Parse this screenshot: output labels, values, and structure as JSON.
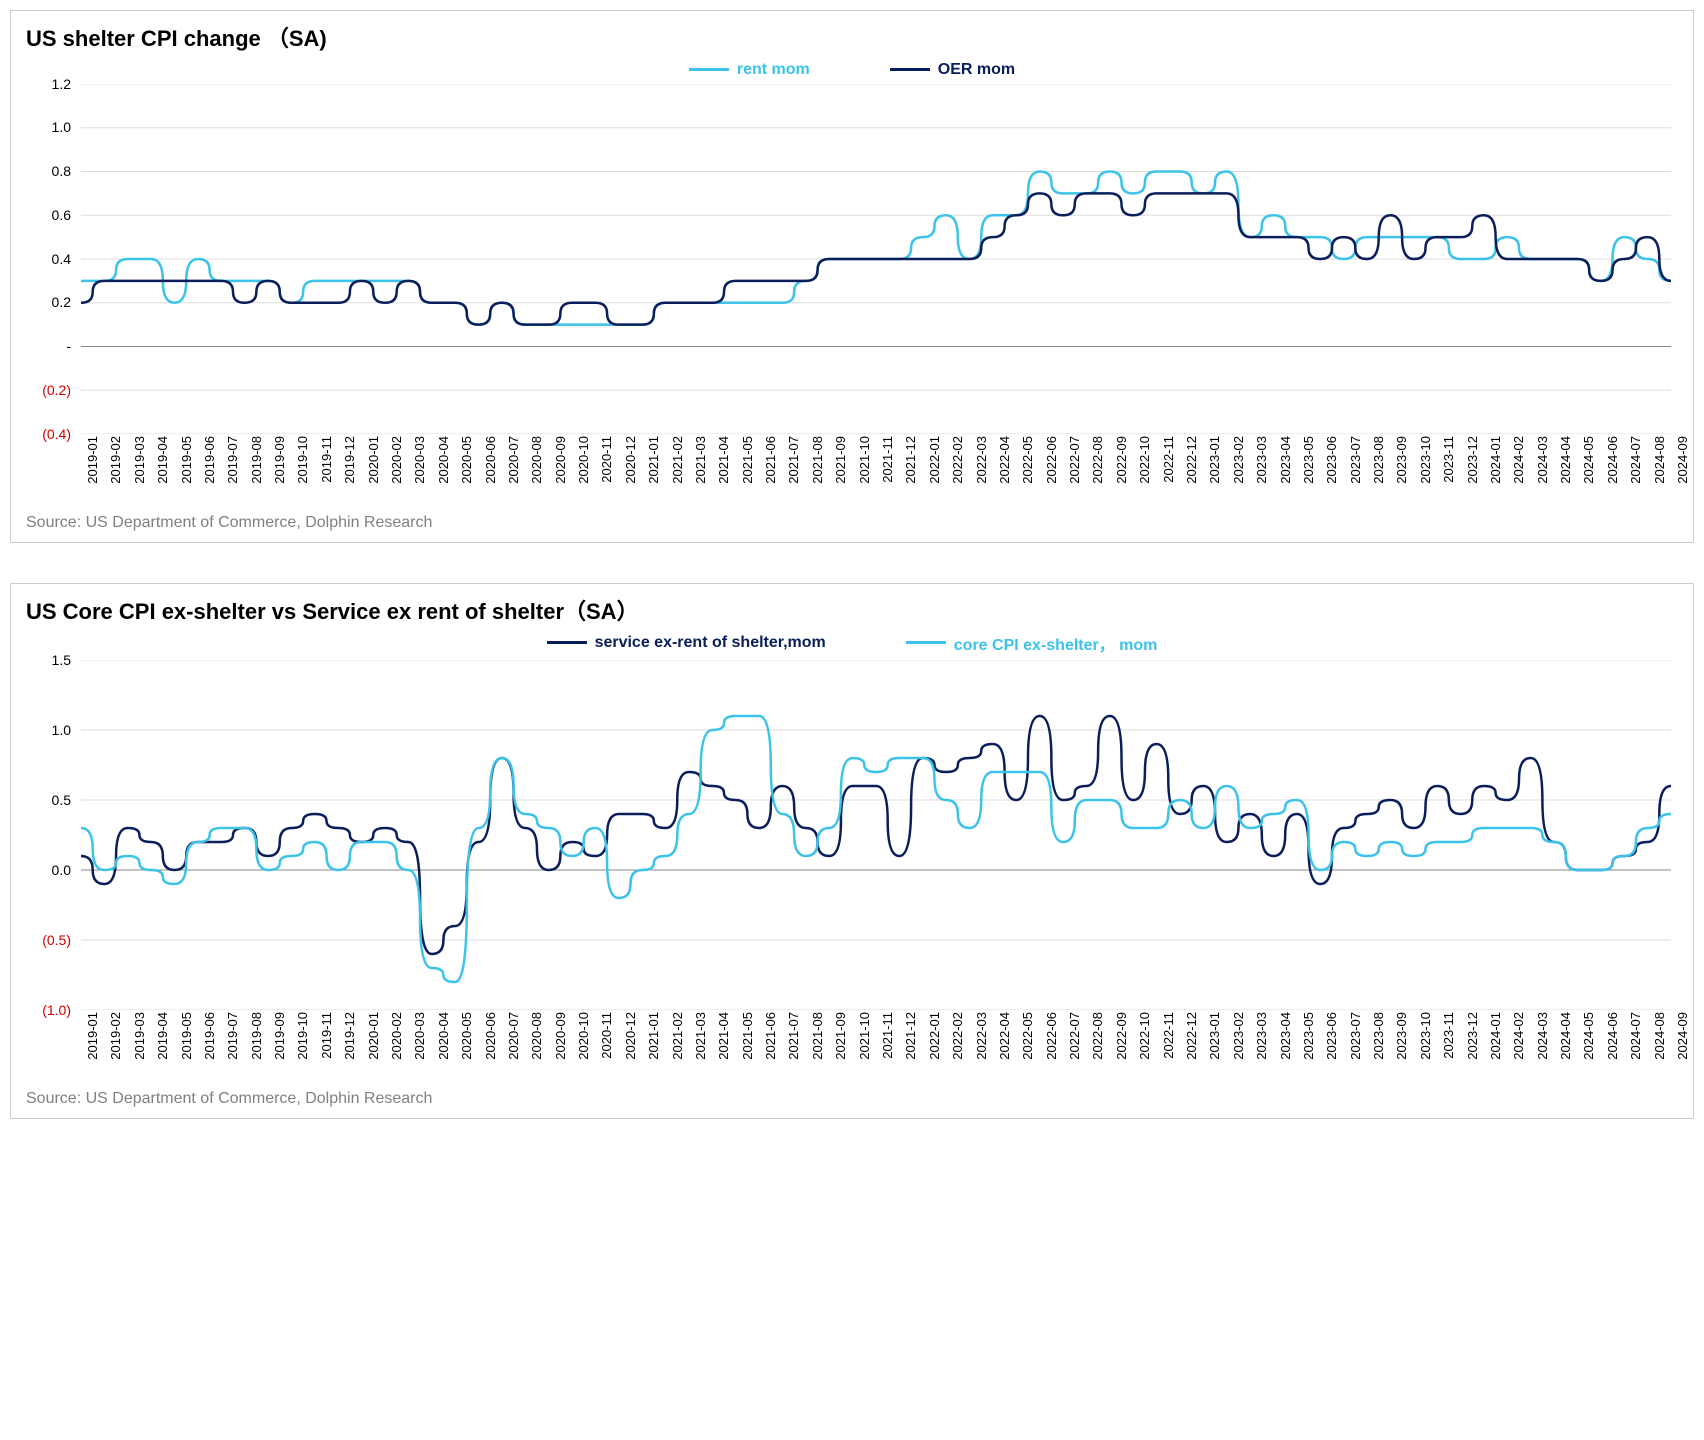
{
  "charts": [
    {
      "title": "US shelter CPI change （SA)",
      "source": "Source: US Department of Commerce,  Dolphin Research",
      "type": "line",
      "background_color": "#ffffff",
      "grid_color": "#dddddd",
      "title_fontsize": 22,
      "label_fontsize": 14,
      "line_width": 2.5,
      "ylim": [
        -0.4,
        1.2
      ],
      "ytick_step": 0.2,
      "yticks": [
        {
          "v": 1.2,
          "label": "1.2",
          "neg": false
        },
        {
          "v": 1.0,
          "label": "1.0",
          "neg": false
        },
        {
          "v": 0.8,
          "label": "0.8",
          "neg": false
        },
        {
          "v": 0.6,
          "label": "0.6",
          "neg": false
        },
        {
          "v": 0.4,
          "label": "0.4",
          "neg": false
        },
        {
          "v": 0.2,
          "label": "0.2",
          "neg": false
        },
        {
          "v": 0.0,
          "label": "-",
          "neg": false
        },
        {
          "v": -0.2,
          "label": "(0.2)",
          "neg": true
        },
        {
          "v": -0.4,
          "label": "(0.4)",
          "neg": true
        }
      ],
      "categories": [
        "2019-01",
        "2019-02",
        "2019-03",
        "2019-04",
        "2019-05",
        "2019-06",
        "2019-07",
        "2019-08",
        "2019-09",
        "2019-10",
        "2019-11",
        "2019-12",
        "2020-01",
        "2020-02",
        "2020-03",
        "2020-04",
        "2020-05",
        "2020-06",
        "2020-07",
        "2020-08",
        "2020-09",
        "2020-10",
        "2020-11",
        "2020-12",
        "2021-01",
        "2021-02",
        "2021-03",
        "2021-04",
        "2021-05",
        "2021-06",
        "2021-07",
        "2021-08",
        "2021-09",
        "2021-10",
        "2021-11",
        "2021-12",
        "2022-01",
        "2022-02",
        "2022-03",
        "2022-04",
        "2022-05",
        "2022-06",
        "2022-07",
        "2022-08",
        "2022-09",
        "2022-10",
        "2022-11",
        "2022-12",
        "2023-01",
        "2023-02",
        "2023-03",
        "2023-04",
        "2023-05",
        "2023-06",
        "2023-07",
        "2023-08",
        "2023-09",
        "2023-10",
        "2023-11",
        "2023-12",
        "2024-01",
        "2024-02",
        "2024-03",
        "2024-04",
        "2024-05",
        "2024-06",
        "2024-07",
        "2024-08",
        "2024-09"
      ],
      "legend_position": "top-center",
      "series": [
        {
          "name": "rent mom",
          "color": "#3cc3e8",
          "values": [
            0.3,
            0.3,
            0.4,
            0.4,
            0.2,
            0.4,
            0.3,
            0.3,
            0.3,
            0.2,
            0.3,
            0.3,
            0.3,
            0.3,
            0.3,
            0.2,
            0.2,
            0.1,
            0.2,
            0.1,
            0.1,
            0.1,
            0.1,
            0.1,
            0.1,
            0.2,
            0.2,
            0.2,
            0.2,
            0.2,
            0.2,
            0.3,
            0.4,
            0.4,
            0.4,
            0.4,
            0.5,
            0.6,
            0.4,
            0.6,
            0.6,
            0.8,
            0.7,
            0.7,
            0.8,
            0.7,
            0.8,
            0.8,
            0.7,
            0.8,
            0.5,
            0.6,
            0.5,
            0.5,
            0.4,
            0.5,
            0.5,
            0.5,
            0.5,
            0.4,
            0.4,
            0.5,
            0.4,
            0.4,
            0.4,
            0.3,
            0.5,
            0.4,
            0.3
          ]
        },
        {
          "name": "OER mom",
          "color": "#0a1e5a",
          "values": [
            0.2,
            0.3,
            0.3,
            0.3,
            0.3,
            0.3,
            0.3,
            0.2,
            0.3,
            0.2,
            0.2,
            0.2,
            0.3,
            0.2,
            0.3,
            0.2,
            0.2,
            0.1,
            0.2,
            0.1,
            0.1,
            0.2,
            0.2,
            0.1,
            0.1,
            0.2,
            0.2,
            0.2,
            0.3,
            0.3,
            0.3,
            0.3,
            0.4,
            0.4,
            0.4,
            0.4,
            0.4,
            0.4,
            0.4,
            0.5,
            0.6,
            0.7,
            0.6,
            0.7,
            0.7,
            0.6,
            0.7,
            0.7,
            0.7,
            0.7,
            0.5,
            0.5,
            0.5,
            0.4,
            0.5,
            0.4,
            0.6,
            0.4,
            0.5,
            0.5,
            0.6,
            0.4,
            0.4,
            0.4,
            0.4,
            0.3,
            0.4,
            0.5,
            0.3
          ]
        }
      ]
    },
    {
      "title": "US  Core CPI ex-shelter vs Service ex rent of shelter（SA）",
      "source": "Source: US Department of Commerce,  Dolphin Research",
      "type": "line",
      "background_color": "#ffffff",
      "grid_color": "#dddddd",
      "title_fontsize": 22,
      "label_fontsize": 14,
      "line_width": 2.5,
      "ylim": [
        -1.0,
        1.5
      ],
      "ytick_step": 0.5,
      "yticks": [
        {
          "v": 1.5,
          "label": "1.5",
          "neg": false
        },
        {
          "v": 1.0,
          "label": "1.0",
          "neg": false
        },
        {
          "v": 0.5,
          "label": "0.5",
          "neg": false
        },
        {
          "v": 0.0,
          "label": "0.0",
          "neg": false
        },
        {
          "v": -0.5,
          "label": "(0.5)",
          "neg": true
        },
        {
          "v": -1.0,
          "label": "(1.0)",
          "neg": true
        }
      ],
      "categories": [
        "2019-01",
        "2019-02",
        "2019-03",
        "2019-04",
        "2019-05",
        "2019-06",
        "2019-07",
        "2019-08",
        "2019-09",
        "2019-10",
        "2019-11",
        "2019-12",
        "2020-01",
        "2020-02",
        "2020-03",
        "2020-04",
        "2020-05",
        "2020-06",
        "2020-07",
        "2020-08",
        "2020-09",
        "2020-10",
        "2020-11",
        "2020-12",
        "2021-01",
        "2021-02",
        "2021-03",
        "2021-04",
        "2021-05",
        "2021-06",
        "2021-07",
        "2021-08",
        "2021-09",
        "2021-10",
        "2021-11",
        "2021-12",
        "2022-01",
        "2022-02",
        "2022-03",
        "2022-04",
        "2022-05",
        "2022-06",
        "2022-07",
        "2022-08",
        "2022-09",
        "2022-10",
        "2022-11",
        "2022-12",
        "2023-01",
        "2023-02",
        "2023-03",
        "2023-04",
        "2023-05",
        "2023-06",
        "2023-07",
        "2023-08",
        "2023-09",
        "2023-10",
        "2023-11",
        "2023-12",
        "2024-01",
        "2024-02",
        "2024-03",
        "2024-04",
        "2024-05",
        "2024-06",
        "2024-07",
        "2024-08",
        "2024-09"
      ],
      "legend_position": "top-center",
      "series": [
        {
          "name": "service ex-rent of shelter,mom",
          "color": "#0a1e5a",
          "values": [
            0.1,
            -0.1,
            0.3,
            0.2,
            0.0,
            0.2,
            0.2,
            0.3,
            0.1,
            0.3,
            0.4,
            0.3,
            0.2,
            0.3,
            0.2,
            -0.6,
            -0.4,
            0.2,
            0.8,
            0.3,
            0.0,
            0.2,
            0.1,
            0.4,
            0.4,
            0.3,
            0.7,
            0.6,
            0.5,
            0.3,
            0.6,
            0.3,
            0.1,
            0.6,
            0.6,
            0.1,
            0.8,
            0.7,
            0.8,
            0.9,
            0.5,
            1.1,
            0.5,
            0.6,
            1.1,
            0.5,
            0.9,
            0.4,
            0.6,
            0.2,
            0.4,
            0.1,
            0.4,
            -0.1,
            0.3,
            0.4,
            0.5,
            0.3,
            0.6,
            0.4,
            0.6,
            0.5,
            0.8,
            0.2,
            0.0,
            0.0,
            0.1,
            0.2,
            0.6
          ]
        },
        {
          "name": "core CPI ex-shelter， mom",
          "color": "#3cc3e8",
          "values": [
            0.3,
            0.0,
            0.1,
            0.0,
            -0.1,
            0.2,
            0.3,
            0.3,
            0.0,
            0.1,
            0.2,
            0.0,
            0.2,
            0.2,
            0.0,
            -0.7,
            -0.8,
            0.3,
            0.8,
            0.4,
            0.3,
            0.1,
            0.3,
            -0.2,
            0.0,
            0.1,
            0.4,
            1.0,
            1.1,
            1.1,
            0.4,
            0.1,
            0.3,
            0.8,
            0.7,
            0.8,
            0.8,
            0.5,
            0.3,
            0.7,
            0.7,
            0.7,
            0.2,
            0.5,
            0.5,
            0.3,
            0.3,
            0.5,
            0.3,
            0.6,
            0.3,
            0.4,
            0.5,
            0.0,
            0.2,
            0.1,
            0.2,
            0.1,
            0.2,
            0.2,
            0.3,
            0.3,
            0.3,
            0.2,
            0.0,
            0.0,
            0.1,
            0.3,
            0.4
          ]
        }
      ]
    }
  ]
}
